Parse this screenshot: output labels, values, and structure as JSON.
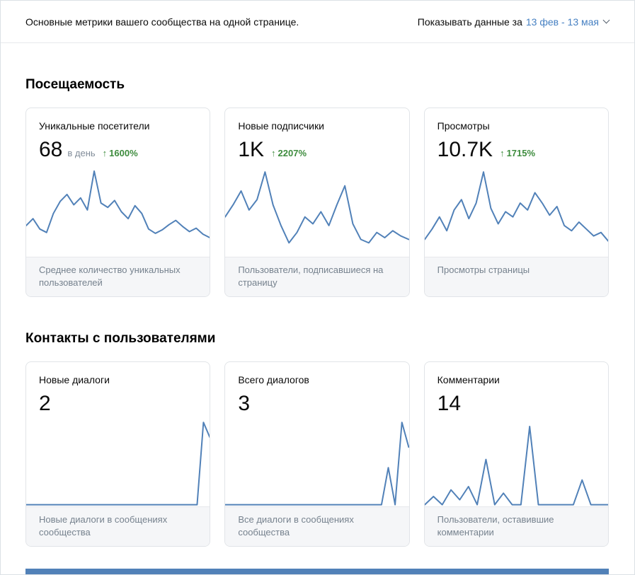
{
  "header": {
    "subtitle": "Основные метрики вашего сообщества на одной странице.",
    "period_label": "Показывать данные за",
    "period_value": "13 фев - 13 мая"
  },
  "icons": {
    "up_arrow": "↑",
    "chevron_down": "chevron-down"
  },
  "colors": {
    "chart_line": "#5181b8",
    "link_blue": "#4680c2",
    "delta_green": "#3e8c3e",
    "footer_gray": "#f5f6f8",
    "bottom_strip": "#5181b8"
  },
  "sections": [
    {
      "title": "Посещаемость",
      "cards": [
        {
          "title": "Уникальные посетители",
          "value": "68",
          "value_suffix": "в день",
          "delta": "1600%",
          "description": "Среднее количество уникальных пользователей"
        },
        {
          "title": "Новые подписчики",
          "value": "1K",
          "delta": "2207%",
          "description": "Пользователи, подписавшиеся на страницу"
        },
        {
          "title": "Просмотры",
          "value": "10.7K",
          "delta": "1715%",
          "description": "Просмотры страницы"
        }
      ]
    },
    {
      "title": "Контакты с пользователями",
      "cards": [
        {
          "title": "Новые диалоги",
          "value": "2",
          "description": "Новые диалоги в сообщениях сообщества"
        },
        {
          "title": "Всего диалогов",
          "value": "3",
          "description": "Все диалоги в сообщениях сообщества"
        },
        {
          "title": "Комментарии",
          "value": "14",
          "description": "Пользователи, оставившие комментарии"
        }
      ]
    }
  ],
  "chart_data": [
    {
      "type": "line",
      "title": "Уникальные посетители (спарклайн)",
      "headline_value": "68 в день",
      "value_scale": "relative-percent-of-chart-height (no axes shown)",
      "values": [
        34,
        42,
        30,
        26,
        48,
        62,
        70,
        58,
        66,
        52,
        97,
        60,
        55,
        63,
        50,
        42,
        57,
        48,
        30,
        25,
        29,
        35,
        40,
        33,
        27,
        31,
        24,
        20
      ]
    },
    {
      "type": "line",
      "title": "Новые подписчики (спарклайн)",
      "headline_value": "1K",
      "value_scale": "relative-percent-of-chart-height (no axes shown)",
      "values": [
        44,
        58,
        74,
        52,
        64,
        96,
        58,
        34,
        14,
        26,
        44,
        36,
        50,
        34,
        58,
        80,
        36,
        18,
        14,
        26,
        20,
        28,
        22,
        18
      ]
    },
    {
      "type": "line",
      "title": "Просмотры (спарклайн)",
      "headline_value": "10.7K",
      "value_scale": "relative-percent-of-chart-height (no axes shown)",
      "values": [
        18,
        30,
        44,
        28,
        52,
        64,
        42,
        60,
        96,
        54,
        36,
        50,
        44,
        60,
        52,
        72,
        60,
        46,
        56,
        34,
        28,
        38,
        30,
        22,
        26,
        16
      ]
    },
    {
      "type": "line",
      "title": "Новые диалоги (спарклайн)",
      "headline_value": "2",
      "value_scale": "relative-percent-of-chart-height (no axes shown)",
      "values": [
        0,
        0,
        0,
        0,
        0,
        0,
        0,
        0,
        0,
        0,
        0,
        0,
        0,
        0,
        0,
        0,
        0,
        0,
        0,
        0,
        0,
        0,
        0,
        0,
        0,
        0,
        0,
        0,
        100,
        82
      ]
    },
    {
      "type": "line",
      "title": "Всего диалогов (спарклайн)",
      "headline_value": "3",
      "value_scale": "relative-percent-of-chart-height (no axes shown)",
      "values": [
        0,
        0,
        0,
        0,
        0,
        0,
        0,
        0,
        0,
        0,
        0,
        0,
        0,
        0,
        0,
        0,
        0,
        0,
        0,
        0,
        0,
        0,
        0,
        0,
        45,
        0,
        100,
        70
      ]
    },
    {
      "type": "line",
      "title": "Комментарии (спарклайн)",
      "headline_value": "14",
      "value_scale": "relative-percent-of-chart-height (no axes shown)",
      "values": [
        0,
        10,
        0,
        18,
        6,
        22,
        0,
        55,
        0,
        14,
        0,
        0,
        95,
        0,
        0,
        0,
        0,
        0,
        30,
        0,
        0,
        0
      ]
    }
  ]
}
